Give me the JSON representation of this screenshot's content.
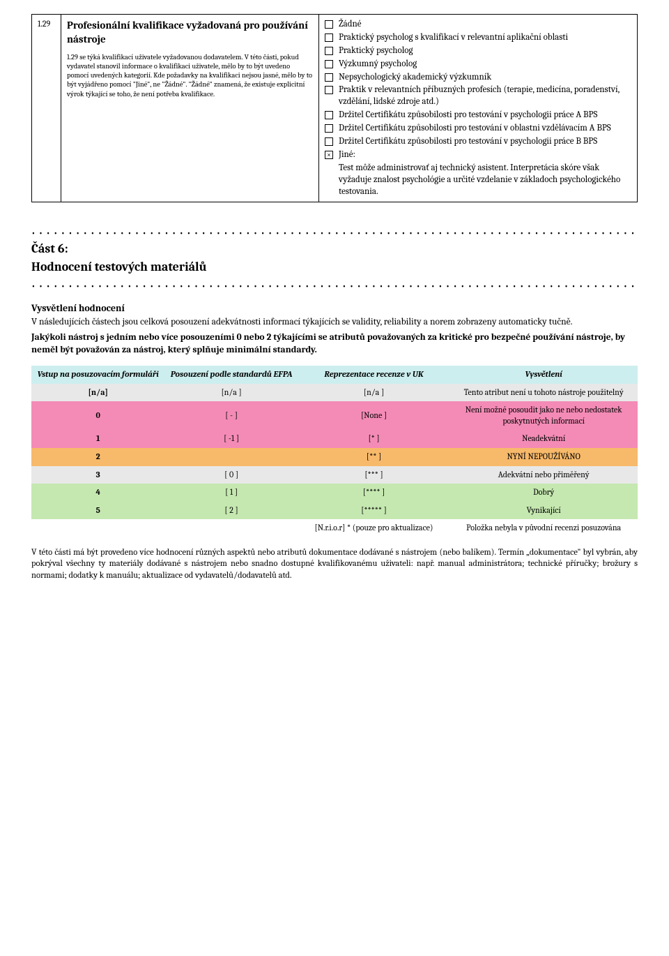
{
  "section_129": {
    "number": "1.29",
    "title": "Profesionální kvalifikace vyžadovaná pro používání nástroje",
    "note": "1.29 se týká kvalifikací uživatele vyžadovanou dodavatelem.  V této části, pokud vydavatel stanovil informace o kvalifikaci uživatele, mělo by to být uvedeno pomocí uvedených kategorií. Kde požadavky na kvalifikaci nejsou jasné, mělo by to být vyjádřeno pomocí \"Jiné\", ne \"Žádné\". \"Žádné\" znamená, že existuje explicitní výrok týkající se toho, že není potřeba kvalifikace.",
    "options": [
      {
        "label": "Žádné",
        "checked": false
      },
      {
        "label": "Praktický psycholog s kvalifikací v relevantní aplikační oblasti",
        "checked": false
      },
      {
        "label": "Praktický psycholog",
        "checked": false
      },
      {
        "label": "Výzkumný psycholog",
        "checked": false
      },
      {
        "label": "Nepsychologický akademický výzkumník",
        "checked": false
      },
      {
        "label": "Praktik v relevantních příbuzných profesích (terapie, medicína, poradenství, vzdělání, lidské zdroje atd.)",
        "checked": false
      },
      {
        "label": "Držitel Certifikátu způsobilosti pro  testování v psychologii práce A BPS",
        "checked": false
      },
      {
        "label": "Držitel Certifikátu způsobilosti pro testování v oblastni vzdělávacím A BPS",
        "checked": false
      },
      {
        "label": "Držitel Certifikátu způsobilosti pro  testování v psychologii práce B BPS",
        "checked": false
      },
      {
        "label": "Jiné:",
        "checked": true
      }
    ],
    "jine_text": "Test môže administrovať aj technický asistent. Interpretácia skóre však vyžaduje znalost psychológie a určité vzdelanie v základoch psychologického testovania."
  },
  "part6": {
    "heading_line1": "Část 6:",
    "heading_line2": "Hodnocení testových materiálů",
    "expl_heading": "Vysvětlení hodnocení",
    "expl_para": "V následujících částech jsou celková posouzení adekvátnosti informací týkajících se validity, reliability a norem zobrazeny automaticky tučně.",
    "expl_bold": "Jakýkoli nástroj s jedním nebo více posouzeními 0 nebo 2 týkajícími se atributů považovaných za kritické pro bezpečné používání nástroje, by neměl být považován za nástroj, který splňuje minimální standardy."
  },
  "rating_table": {
    "header_bg": "#cdeeee",
    "headers": [
      "Vstup na posuzovacím formuláři",
      "Posouzení podle standardů EFPA",
      "Reprezentace recenze v UK",
      "Vysvětlení"
    ],
    "rows": [
      {
        "cells": [
          "[n/a]",
          "[n/a ]",
          "[n/a ]",
          "Tento atribut není u tohoto nástroje použitelný"
        ],
        "bg": "#e8e8e8"
      },
      {
        "cells": [
          "0",
          "[  -  ]",
          "[None ]",
          "Není možné posoudit jako ne nebo nedostatek poskytnutých informací"
        ],
        "bg": "#f48bb6"
      },
      {
        "cells": [
          "1",
          "[  -1  ]",
          "[*     ]",
          "Neadekvátní"
        ],
        "bg": "#f48bb6"
      },
      {
        "cells": [
          "2",
          "",
          "[**    ]",
          "NYNÍ NEPOUŽÍVÁNO"
        ],
        "bg": "#f7b96a"
      },
      {
        "cells": [
          "3",
          "[  0  ]",
          "[***   ]",
          "Adekvátní nebo přiměřený"
        ],
        "bg": "#e8e8e8"
      },
      {
        "cells": [
          "4",
          "[  1  ]",
          "[****  ]",
          "Dobrý"
        ],
        "bg": "#c5e8b0"
      },
      {
        "cells": [
          "5",
          "[  2  ]",
          "[***** ]",
          "Vynikající"
        ],
        "bg": "#c5e8b0"
      },
      {
        "cells": [
          "",
          "",
          "[N.r.i.o.r] * (pouze pro aktualizace)",
          "Položka nebyla v původní recenzi posuzována"
        ],
        "bg": "#ffffff"
      }
    ]
  },
  "bottom_para": "V této části má být provedeno více hodnocení různých aspektů nebo atributů dokumentace dodávané s nástrojem (nebo balíkem). Termín „dokumentace\" byl vybrán, aby pokrýval všechny ty materiály dodávané s nástrojem nebo snadno dostupné kvalifikovanému uživateli: např. manual administrátora; technické příručky; brožury s normami; dodatky k manuálu; aktualizace od vydavatelů/dodavatelů atd."
}
